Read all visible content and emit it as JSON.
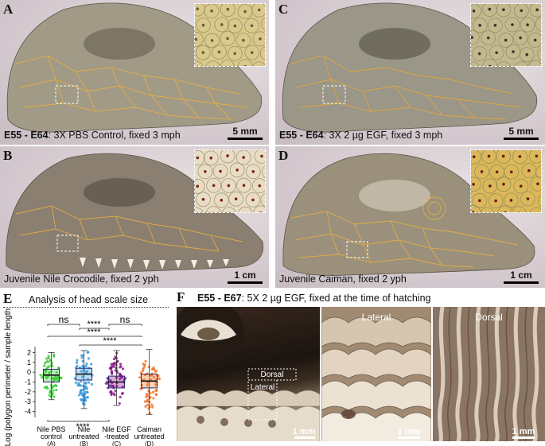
{
  "panels": {
    "A": {
      "label": "A",
      "caption_bold": "E55 - E64",
      "caption_rest": ": 3X PBS Control, fixed 3 mph",
      "scale": "5 mm",
      "skin": "#a19a86",
      "inset_bg": "#d9c98b",
      "spot": "#6b5b3a"
    },
    "B": {
      "label": "B",
      "caption": "Juvenile Nile Crocodile, fixed 2 yph",
      "scale": "1 cm",
      "skin": "#8a7f70",
      "inset_bg": "#e8ddc4",
      "spot": "#7a2418"
    },
    "C": {
      "label": "C",
      "caption_bold": "E55 - E64",
      "caption_rest": ": 3X 2 µg EGF, fixed 3 mph",
      "scale": "5 mm",
      "skin": "#9a9688",
      "inset_bg": "#c3b98e",
      "spot": "#3a3528"
    },
    "D": {
      "label": "D",
      "caption": "Juvenile Caiman, fixed 2 yph",
      "scale": "1 cm",
      "skin": "#9a907c",
      "inset_bg": "#d9b95a",
      "spot": "#6a1a12"
    }
  },
  "panel_e": {
    "label": "E",
    "title": "Analysis of head scale size",
    "ylabel": "Log (polygon perimeter / sample length)",
    "significance": {
      "ns_left": "ns",
      "ns_right": "ns",
      "stars_ac": "****",
      "stars_ad": "****",
      "stars_bc": "****",
      "stars_bd": "****",
      "stars_bottom": "****"
    }
  },
  "panel_f": {
    "label": "F",
    "title_bold": "E55 - E67",
    "title_rest": ": 5X 2 µg EGF, fixed at the time of hatching",
    "dorsal": "Dorsal",
    "lateral": "Lateral",
    "lateral_title": "Lateral",
    "dorsal_title": "Dorsal",
    "scale": "1 mm"
  },
  "chart_data": {
    "type": "box",
    "title": "Analysis of head scale size",
    "ylabel": "Log (polygon perimeter / sample length)",
    "ylim": [
      -4.6,
      2.6
    ],
    "yticks": [
      2,
      1,
      0,
      -1,
      -2,
      -3,
      -4
    ],
    "categories": [
      "Nile PBS control (A)",
      "Nile untreated (B)",
      "Nile EGF -treated (C)",
      "Caiman untreated (D)"
    ],
    "category_lines": [
      [
        "Nile PBS",
        "control",
        "(A)"
      ],
      [
        "Nile",
        "untreated",
        "(B)"
      ],
      [
        "Nile EGF",
        "-treated",
        "(C)"
      ],
      [
        "Caiman",
        "untreated",
        "(D)"
      ]
    ],
    "colors": [
      "#3ec83a",
      "#3a9ee0",
      "#8b1a8b",
      "#f07830"
    ],
    "series": [
      {
        "min": -2.8,
        "q1": -1.0,
        "median": -0.3,
        "q3": 0.3,
        "max": 2.0
      },
      {
        "min": -3.7,
        "q1": -0.8,
        "median": -0.2,
        "q3": 0.4,
        "max": 2.2
      },
      {
        "min": -3.4,
        "q1": -1.6,
        "median": -1.0,
        "q3": -0.4,
        "max": 2.2
      },
      {
        "min": -4.3,
        "q1": -1.6,
        "median": -0.9,
        "q3": -0.2,
        "max": 2.3
      }
    ]
  }
}
